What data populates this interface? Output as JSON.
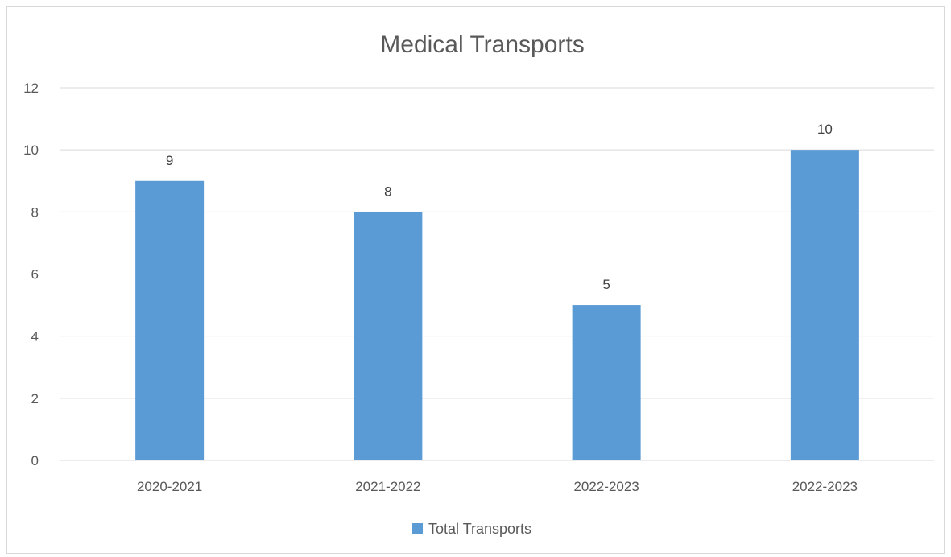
{
  "chart_data": {
    "type": "bar",
    "title": "Medical Transports",
    "xlabel": "",
    "ylabel": "",
    "categories": [
      "2020-2021",
      "2021-2022",
      "2022-2023",
      "2022-2023"
    ],
    "series": [
      {
        "name": "Total Transports",
        "values": [
          9,
          8,
          5,
          10
        ],
        "color": "#5b9bd5"
      }
    ],
    "ylim": [
      0,
      12
    ],
    "yticks": [
      0,
      2,
      4,
      6,
      8,
      10,
      12
    ],
    "grid": true,
    "legend_position": "bottom",
    "data_labels": true,
    "gridline_color": "#d9d9d9",
    "text_color": "#595959"
  }
}
